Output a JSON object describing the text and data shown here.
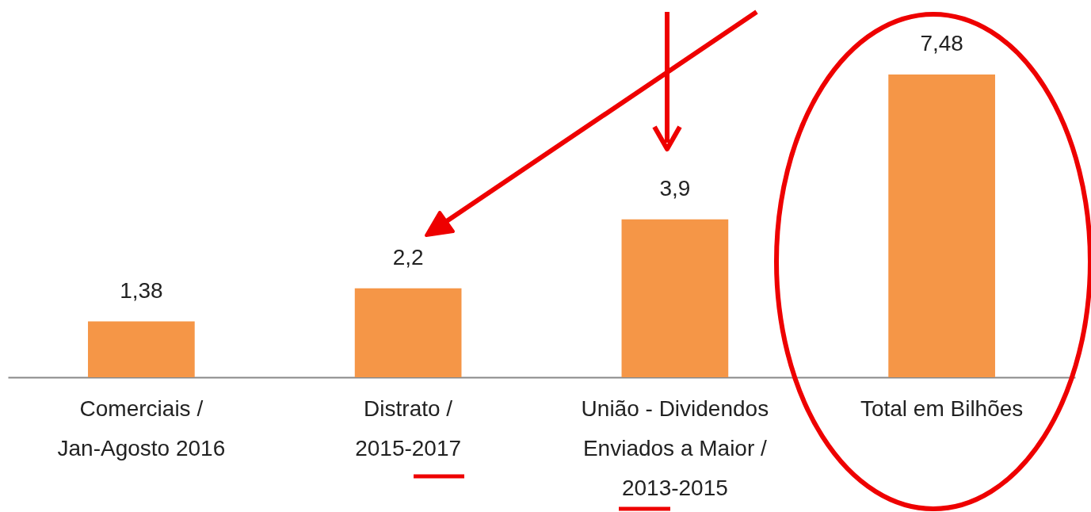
{
  "chart_data": {
    "type": "bar",
    "categories": [
      "Comerciais / Jan-Agosto 2016",
      "Distrato / 2015-2017",
      "União - Dividendos Enviados a Maior / 2013-2015",
      "Total em Bilhões"
    ],
    "values": [
      1.38,
      2.2,
      3.9,
      7.48
    ],
    "value_labels": [
      "1,38",
      "2,2",
      "3,9",
      "7,48"
    ],
    "color": "#f59647",
    "grid": false
  }
}
